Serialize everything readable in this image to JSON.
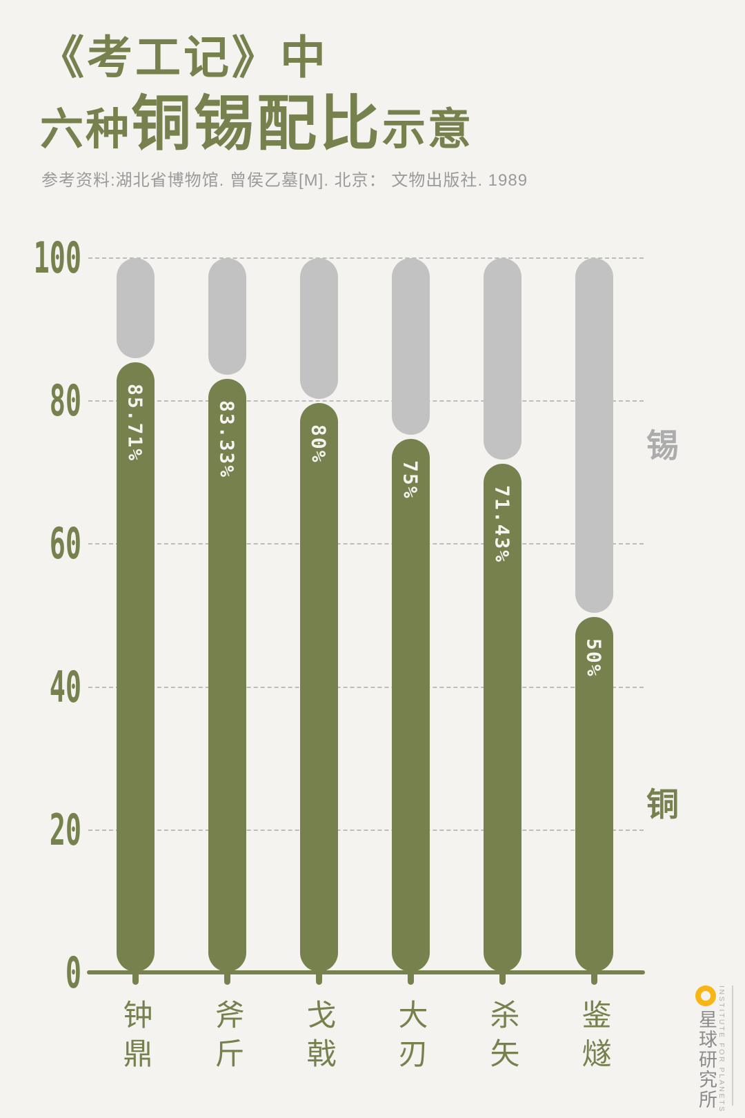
{
  "title": {
    "line1": "《考工记》中",
    "line2_prefix": "六种",
    "line2_main": "铜锡配比",
    "line2_suffix": "示意"
  },
  "source": "参考资料:湖北省博物馆. 曾侯乙墓[M]. 北京： 文物出版社. 1989",
  "chart_data": {
    "type": "bar",
    "stacked": true,
    "orientation": "vertical",
    "categories": [
      "钟鼎",
      "斧斤",
      "戈戟",
      "大刃",
      "杀矢",
      "鉴燧"
    ],
    "series": [
      {
        "name": "铜",
        "color": "#76814E",
        "values": [
          85.71,
          83.33,
          80,
          75,
          71.43,
          50
        ]
      },
      {
        "name": "锡",
        "color": "#C2C2C2",
        "values": [
          14.29,
          16.67,
          20,
          25,
          28.57,
          50
        ]
      }
    ],
    "value_labels": [
      "85.71%",
      "83.33%",
      "80%",
      "75%",
      "71.43%",
      "50%"
    ],
    "y_ticks": [
      100,
      80,
      60,
      40,
      20,
      0
    ],
    "ylim": [
      0,
      100
    ],
    "grid": "horizontal dashed",
    "legend": {
      "tin_label": "锡",
      "copper_label": "铜",
      "position": "right-of-plot"
    }
  },
  "colors": {
    "background": "#F4F3EF",
    "copper_green": "#76814E",
    "tin_gray": "#C2C2C2",
    "title_green": "#76814E",
    "subtitle_gray": "#9A9A9A",
    "gridline_gray": "#BCBCBC",
    "tin_side_label_gray": "#ACACAC",
    "bar_value_text": "#F5F4F0",
    "logo_yellow": "#F8B516",
    "logo_text_gray": "#8B8B8B"
  },
  "logo": {
    "zh": "星球研究所",
    "en": "INSTITUTE FOR PLANETS"
  }
}
